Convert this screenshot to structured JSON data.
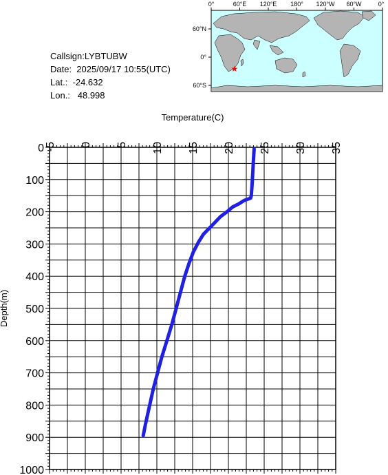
{
  "info": {
    "callsign": "Callsign:LYBTUBW",
    "date": "Date:  2025/09/17 10:55(UTC)",
    "lat": "Lat.:  -24.632",
    "lon": "Lon.:   48.998"
  },
  "map": {
    "lon_labels": [
      "0°",
      "60°E",
      "120°E",
      "180°",
      "120°W",
      "60°W",
      "0°"
    ],
    "lat_labels": [
      "60°N",
      "0°",
      "60°S"
    ],
    "marker": {
      "lat": -24.632,
      "lon": 48.998
    },
    "colors": {
      "ocean": "#ccffff",
      "land": "#b4b4b4",
      "marker": "#ff0000"
    }
  },
  "chart_data": {
    "type": "line",
    "xlabel": "Temperature(C)",
    "ylabel": "Depth(m)",
    "xlim": [
      -5,
      35
    ],
    "ylim": [
      0,
      1000
    ],
    "y_inverted": true,
    "x_ticks": [
      -5,
      0,
      5,
      10,
      15,
      20,
      25,
      30,
      35
    ],
    "y_ticks": [
      0,
      100,
      200,
      300,
      400,
      500,
      600,
      700,
      800,
      900,
      1000
    ],
    "x_axis_position": "top",
    "grid": true,
    "line_color": "#2020e0",
    "series": [
      {
        "x": [
          23.6,
          23.5,
          23.4,
          23.3,
          23.2,
          23.1,
          22.2,
          21.5,
          20.6,
          19.8,
          18.9,
          17.6,
          16.5,
          15.8,
          15.1,
          14.5,
          13.9,
          13.3,
          12.7,
          12.1,
          11.4,
          10.7,
          10.1,
          9.5,
          9.0,
          8.4,
          8.1
        ],
        "y": [
          5,
          40,
          80,
          120,
          150,
          158,
          165,
          175,
          185,
          200,
          215,
          245,
          270,
          295,
          325,
          360,
          400,
          450,
          500,
          550,
          600,
          650,
          700,
          750,
          800,
          860,
          895
        ]
      }
    ]
  }
}
